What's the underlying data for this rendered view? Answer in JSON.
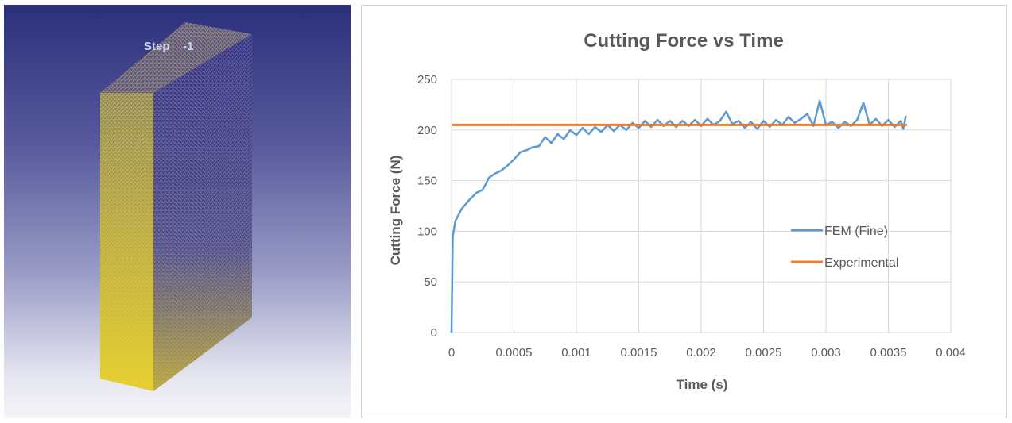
{
  "mesh_view": {
    "step_label": "Step    -1",
    "colors": {
      "mesh": "#e8d23a",
      "background_top": "#2b2f7a",
      "background_bottom": "#f4f4f8"
    }
  },
  "chart_data": {
    "type": "line",
    "title": "Cutting Force vs Time",
    "xlabel": "Time (s)",
    "ylabel": "Cutting Force (N)",
    "xlim": [
      0,
      0.004
    ],
    "ylim": [
      0,
      250
    ],
    "xticks": [
      "0",
      "0.0005",
      "0.001",
      "0.0015",
      "0.002",
      "0.0025",
      "0.003",
      "0.0035",
      "0.004"
    ],
    "yticks": [
      "0",
      "50",
      "100",
      "150",
      "200",
      "250"
    ],
    "grid": true,
    "legend_position": "right",
    "series": [
      {
        "name": "FEM (Fine)",
        "color": "#5b9bd5",
        "x": [
          0,
          1e-05,
          3e-05,
          8e-05,
          0.00015,
          0.0002,
          0.00025,
          0.0003,
          0.00035,
          0.0004,
          0.00045,
          0.0005,
          0.00055,
          0.0006,
          0.00065,
          0.0007,
          0.00075,
          0.0008,
          0.00085,
          0.0009,
          0.00095,
          0.001,
          0.00105,
          0.0011,
          0.00115,
          0.0012,
          0.00125,
          0.0013,
          0.00135,
          0.0014,
          0.00145,
          0.0015,
          0.00155,
          0.0016,
          0.00165,
          0.0017,
          0.00175,
          0.0018,
          0.00185,
          0.0019,
          0.00195,
          0.002,
          0.00205,
          0.0021,
          0.00215,
          0.0022,
          0.00225,
          0.0023,
          0.00235,
          0.0024,
          0.00245,
          0.0025,
          0.00255,
          0.0026,
          0.00265,
          0.0027,
          0.00275,
          0.0028,
          0.00285,
          0.0029,
          0.00295,
          0.003,
          0.00305,
          0.0031,
          0.00315,
          0.0032,
          0.00325,
          0.0033,
          0.00335,
          0.0034,
          0.00345,
          0.0035,
          0.00355,
          0.0036,
          0.00362,
          0.00364
        ],
        "y": [
          0,
          95,
          110,
          122,
          132,
          138,
          141,
          153,
          157,
          160,
          165,
          171,
          178,
          180,
          183,
          184,
          193,
          187,
          196,
          191,
          200,
          195,
          202,
          196,
          203,
          198,
          205,
          199,
          205,
          200,
          207,
          202,
          209,
          203,
          210,
          204,
          209,
          203,
          209,
          204,
          210,
          204,
          211,
          205,
          209,
          218,
          206,
          209,
          202,
          208,
          201,
          209,
          203,
          210,
          205,
          213,
          207,
          211,
          216,
          204,
          229,
          205,
          208,
          202,
          208,
          204,
          210,
          227,
          205,
          211,
          204,
          210,
          203,
          209,
          201,
          214
        ]
      },
      {
        "name": "Experimental",
        "color": "#ed7d31",
        "x": [
          0,
          0.00365
        ],
        "y": [
          205,
          205
        ]
      }
    ]
  }
}
